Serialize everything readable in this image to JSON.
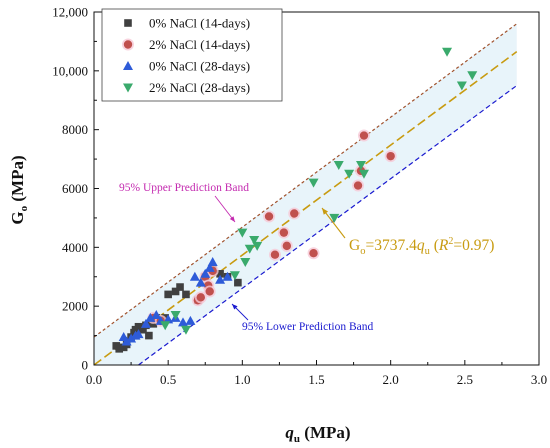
{
  "chart_data": {
    "type": "scatter",
    "xlim": [
      0.0,
      3.0
    ],
    "ylim": [
      0,
      12000
    ],
    "x_ticks": [
      "0.0",
      "0.5",
      "1.0",
      "1.5",
      "2.0",
      "2.5",
      "3.0"
    ],
    "y_ticks": [
      "0",
      "2000",
      "4000",
      "6000",
      "8000",
      "10,000",
      "12,000"
    ],
    "xlabel": {
      "main": "q",
      "sub": "u",
      "suffix": " (MPa)"
    },
    "ylabel": {
      "main": "G",
      "sub": "o",
      "suffix": " (MPa)"
    },
    "legend_position": "top-left",
    "series": [
      {
        "name": "0% NaCl (14-days)",
        "marker": "square",
        "color": "#404040",
        "points": [
          [
            0.15,
            650
          ],
          [
            0.17,
            550
          ],
          [
            0.2,
            600
          ],
          [
            0.22,
            700
          ],
          [
            0.25,
            950
          ],
          [
            0.27,
            1100
          ],
          [
            0.28,
            1200
          ],
          [
            0.3,
            1300
          ],
          [
            0.33,
            1200
          ],
          [
            0.35,
            1350
          ],
          [
            0.37,
            1000
          ],
          [
            0.4,
            1400
          ],
          [
            0.42,
            1600
          ],
          [
            0.48,
            1600
          ],
          [
            0.5,
            2400
          ],
          [
            0.55,
            2500
          ],
          [
            0.58,
            2650
          ],
          [
            0.62,
            2400
          ],
          [
            0.7,
            2200
          ],
          [
            0.75,
            3000
          ],
          [
            0.8,
            3300
          ],
          [
            0.85,
            3100
          ],
          [
            0.9,
            3000
          ],
          [
            0.97,
            2800
          ]
        ]
      },
      {
        "name": "2% NaCl (14-days)",
        "marker": "circle",
        "color": "#c0504d",
        "points": [
          [
            0.4,
            1600
          ],
          [
            0.45,
            1500
          ],
          [
            0.7,
            2200
          ],
          [
            0.72,
            2300
          ],
          [
            0.75,
            3000
          ],
          [
            0.77,
            2700
          ],
          [
            0.78,
            2500
          ],
          [
            0.8,
            3200
          ],
          [
            1.18,
            5050
          ],
          [
            1.22,
            3750
          ],
          [
            1.28,
            4500
          ],
          [
            1.3,
            4050
          ],
          [
            1.35,
            5150
          ],
          [
            1.48,
            3800
          ],
          [
            1.78,
            6100
          ],
          [
            1.8,
            6600
          ],
          [
            1.82,
            7800
          ],
          [
            2.0,
            7100
          ]
        ]
      },
      {
        "name": "0% NaCl (28-days)",
        "marker": "triangle-up",
        "color": "#2e5bd8",
        "points": [
          [
            0.2,
            950
          ],
          [
            0.22,
            800
          ],
          [
            0.25,
            900
          ],
          [
            0.28,
            1000
          ],
          [
            0.3,
            1050
          ],
          [
            0.35,
            1400
          ],
          [
            0.38,
            1600
          ],
          [
            0.42,
            1700
          ],
          [
            0.45,
            1500
          ],
          [
            0.5,
            1550
          ],
          [
            0.55,
            1600
          ],
          [
            0.6,
            1450
          ],
          [
            0.65,
            1500
          ],
          [
            0.68,
            3000
          ],
          [
            0.72,
            2800
          ],
          [
            0.75,
            3100
          ],
          [
            0.78,
            3300
          ],
          [
            0.8,
            3500
          ],
          [
            0.85,
            2900
          ],
          [
            0.9,
            3000
          ]
        ]
      },
      {
        "name": "2% NaCl (28-days)",
        "marker": "triangle-down",
        "color": "#3aaa6c",
        "points": [
          [
            0.48,
            1350
          ],
          [
            0.55,
            1700
          ],
          [
            0.62,
            1200
          ],
          [
            0.95,
            3050
          ],
          [
            1.0,
            4500
          ],
          [
            1.02,
            3500
          ],
          [
            1.05,
            3950
          ],
          [
            1.08,
            4250
          ],
          [
            1.1,
            4050
          ],
          [
            1.48,
            6200
          ],
          [
            1.62,
            5000
          ],
          [
            1.65,
            6800
          ],
          [
            1.72,
            6500
          ],
          [
            1.8,
            6800
          ],
          [
            1.82,
            6500
          ],
          [
            2.38,
            10650
          ],
          [
            2.48,
            9500
          ],
          [
            2.55,
            9850
          ]
        ]
      }
    ],
    "fit": {
      "slope": 3737.4,
      "x_range": [
        0,
        2.85
      ]
    },
    "bands": {
      "upper": [
        [
          0,
          950
        ],
        [
          2.85,
          11600
        ]
      ],
      "lower": [
        [
          0.3,
          0
        ],
        [
          2.85,
          9500
        ]
      ]
    },
    "annotations": {
      "upper_band": "95% Upper Prediction Band",
      "lower_band": "95% Lower Prediction Band",
      "equation": {
        "G": "G",
        "o": "o",
        "eq": "=3737.4",
        "q": "q",
        "u": "u",
        "open": " (",
        "R": "R",
        "two": "2",
        "val": "=0.97)"
      }
    },
    "colors": {
      "fit_line": "#c89b10",
      "upper_band_line": "#a0522d",
      "lower_band_line": "#1a1acf",
      "band_fill": "#e8f4fa",
      "upper_label": "#c42bb0",
      "lower_label": "#1a1acf",
      "equation": "#c89b10"
    }
  }
}
